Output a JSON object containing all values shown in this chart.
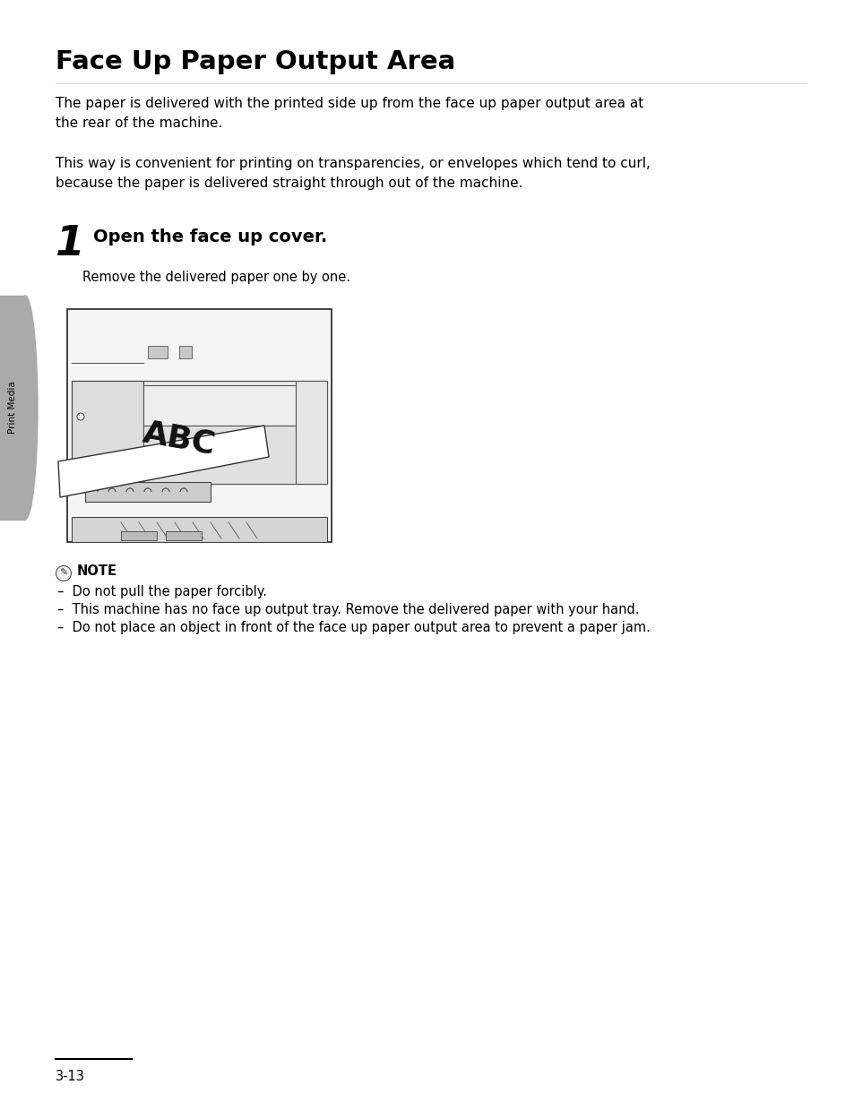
{
  "title": "Face Up Paper Output Area",
  "body_text_1": "The paper is delivered with the printed side up from the face up paper output area at\nthe rear of the machine.",
  "body_text_2": "This way is convenient for printing on transparencies, or envelopes which tend to curl,\nbecause the paper is delivered straight through out of the machine.",
  "step_number": "1",
  "step_title": "Open the face up cover.",
  "step_sub": "Remove the delivered paper one by one.",
  "note_label": "NOTE",
  "note_lines": [
    "–  Do not pull the paper forcibly.",
    "–  This machine has no face up output tray. Remove the delivered paper with your hand.",
    "–  Do not place an object in front of the face up paper output area to prevent a paper jam."
  ],
  "page_number": "3-13",
  "sidebar_text": "Print Media",
  "background_color": "#ffffff",
  "text_color": "#000000",
  "sidebar_color": "#aaaaaa"
}
